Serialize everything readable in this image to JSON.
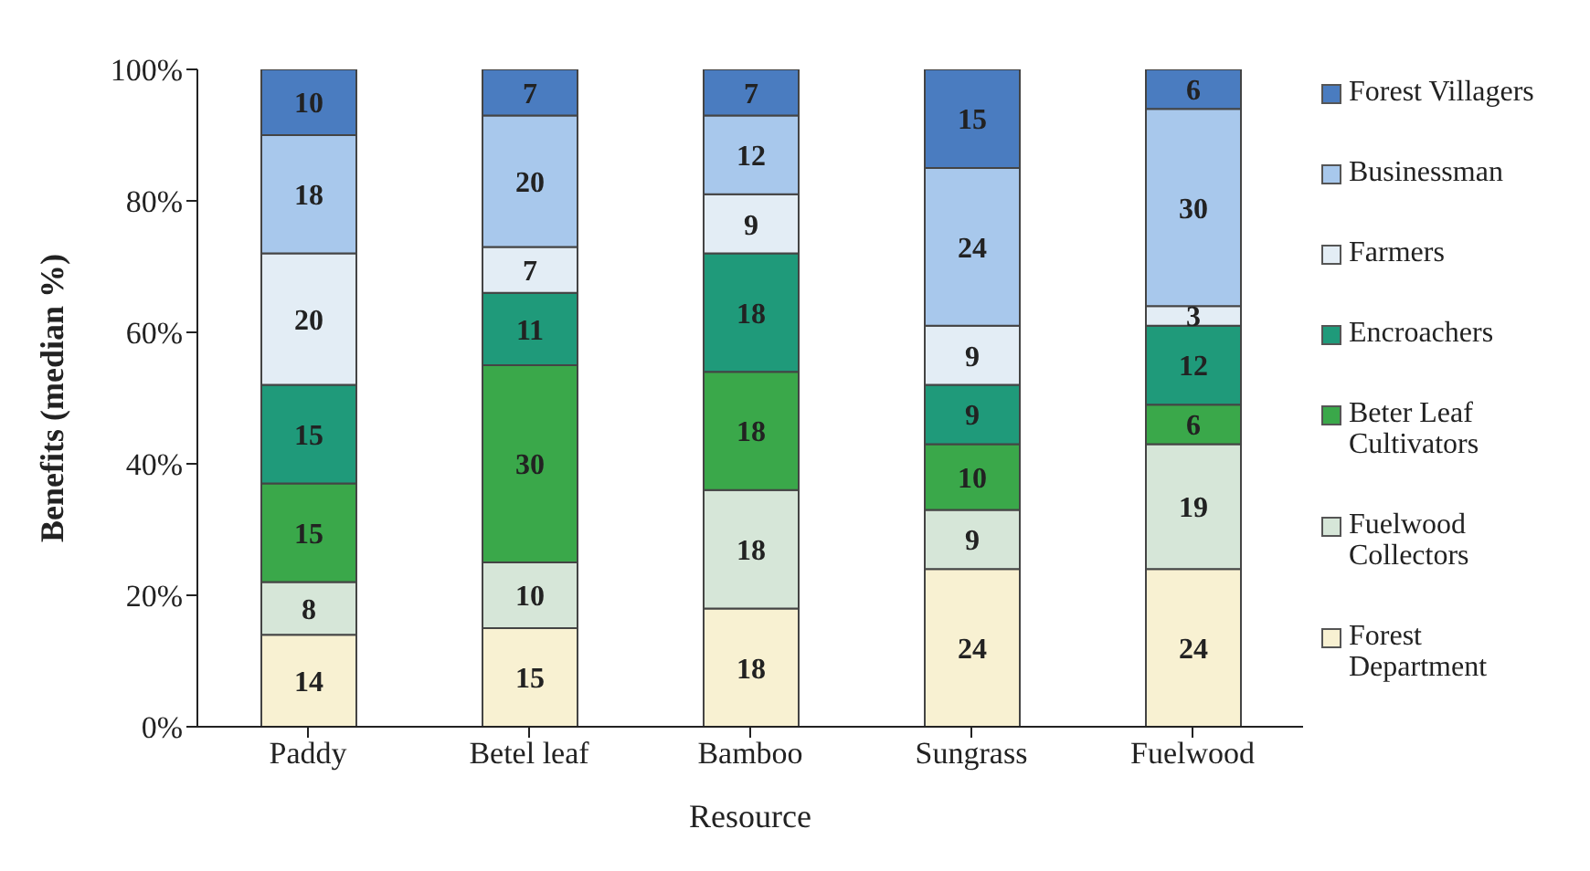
{
  "chart_data": {
    "type": "bar",
    "stacked": true,
    "xlabel": "Resource",
    "ylabel": "Benefits (median %)",
    "categories": [
      "Paddy",
      "Betel leaf",
      "Bamboo",
      "Sungrass",
      "Fuelwood"
    ],
    "series": [
      {
        "name": "Forest Department",
        "color": "#f8f1d2",
        "values": [
          14,
          15,
          18,
          24,
          24
        ]
      },
      {
        "name": "Fuelwood Collectors",
        "color": "#d6e6d8",
        "values": [
          8,
          10,
          18,
          9,
          19
        ]
      },
      {
        "name": "Beter Leaf Cultivators",
        "color": "#3aa84a",
        "values": [
          15,
          30,
          18,
          10,
          6
        ]
      },
      {
        "name": "Encroachers",
        "color": "#1f9a7a",
        "values": [
          15,
          11,
          18,
          9,
          12
        ]
      },
      {
        "name": "Farmers",
        "color": "#e3edf5",
        "values": [
          20,
          7,
          9,
          9,
          3
        ]
      },
      {
        "name": "Businessman",
        "color": "#a8c8ec",
        "values": [
          18,
          20,
          12,
          24,
          30
        ]
      },
      {
        "name": "Forest Villagers",
        "color": "#4a7cc0",
        "values": [
          10,
          7,
          7,
          15,
          6
        ]
      }
    ],
    "ylim": [
      0,
      100
    ],
    "yticks": [
      {
        "value": 0,
        "label": "0%"
      },
      {
        "value": 20,
        "label": "20%"
      },
      {
        "value": 40,
        "label": "40%"
      },
      {
        "value": 60,
        "label": "60%"
      },
      {
        "value": 80,
        "label": "80%"
      },
      {
        "value": 100,
        "label": "100%"
      }
    ],
    "grid": false,
    "legend": "right",
    "data_labels": true
  }
}
